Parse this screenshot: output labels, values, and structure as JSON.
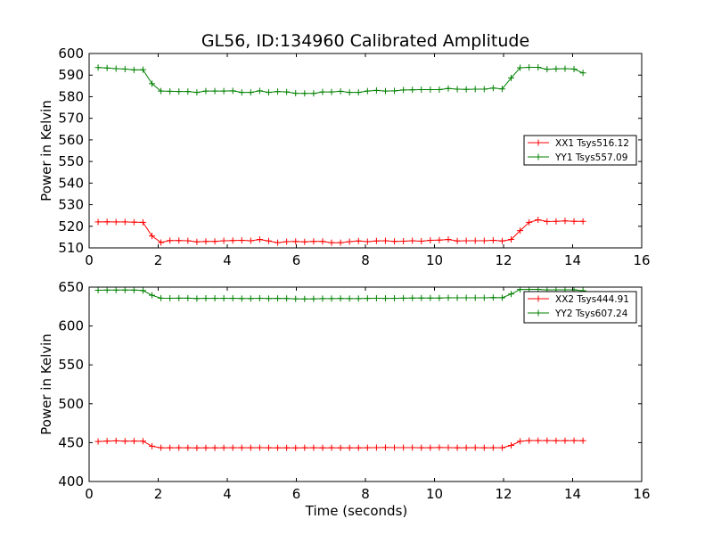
{
  "figure": {
    "title": "GL56, ID:134960 Calibrated Amplitude"
  },
  "chart_data": [
    {
      "type": "line",
      "title": "GL56, ID:134960 Calibrated Amplitude",
      "xlabel": "",
      "ylabel": "Power in Kelvin",
      "xlim": [
        0,
        16
      ],
      "ylim": [
        510,
        600
      ],
      "xticks": [
        0,
        2,
        4,
        6,
        8,
        10,
        12,
        14,
        16
      ],
      "yticks": [
        510,
        520,
        530,
        540,
        550,
        560,
        570,
        580,
        590,
        600
      ],
      "grid": false,
      "legend_position": "center-right",
      "x": [
        0.26,
        0.52,
        0.78,
        1.04,
        1.3,
        1.56,
        1.82,
        2.08,
        2.34,
        2.6,
        2.86,
        3.12,
        3.38,
        3.64,
        3.9,
        4.16,
        4.42,
        4.68,
        4.94,
        5.2,
        5.46,
        5.72,
        5.98,
        6.24,
        6.5,
        6.76,
        7.02,
        7.28,
        7.54,
        7.8,
        8.06,
        8.32,
        8.58,
        8.84,
        9.1,
        9.36,
        9.62,
        9.88,
        10.14,
        10.4,
        10.66,
        10.92,
        11.18,
        11.44,
        11.7,
        11.96,
        12.22,
        12.48,
        12.74,
        13.0,
        13.26,
        13.52,
        13.78,
        14.04,
        14.3
      ],
      "series": [
        {
          "name": "XX1 Tsys516.12",
          "color": "#ff0000",
          "values": [
            522.0,
            522.1,
            522.0,
            522.0,
            521.9,
            521.8,
            515.5,
            512.5,
            513.4,
            513.4,
            513.3,
            512.8,
            513.0,
            513.0,
            513.3,
            513.4,
            513.5,
            513.3,
            513.9,
            513.2,
            512.4,
            512.9,
            513.0,
            512.8,
            513.0,
            513.0,
            512.4,
            512.4,
            512.9,
            513.2,
            512.9,
            513.2,
            513.3,
            513.0,
            513.1,
            513.3,
            513.1,
            513.5,
            513.6,
            513.9,
            513.2,
            513.3,
            513.3,
            513.3,
            513.5,
            513.2,
            513.9,
            518.0,
            521.8,
            523.0,
            522.2,
            522.3,
            522.5,
            522.3,
            522.3
          ]
        },
        {
          "name": "YY1 Tsys557.09",
          "color": "#008000",
          "values": [
            593.5,
            593.3,
            593.0,
            592.8,
            592.4,
            592.5,
            586.0,
            582.6,
            582.5,
            582.4,
            582.4,
            582.0,
            582.6,
            582.6,
            582.6,
            582.7,
            582.0,
            582.0,
            582.7,
            582.0,
            582.4,
            582.2,
            581.6,
            581.5,
            581.5,
            582.2,
            582.2,
            582.5,
            582.0,
            582.0,
            582.6,
            582.9,
            582.6,
            582.7,
            583.1,
            583.2,
            583.3,
            583.3,
            583.3,
            583.8,
            583.5,
            583.4,
            583.5,
            583.5,
            584.0,
            583.6,
            588.7,
            593.4,
            593.6,
            593.6,
            592.7,
            592.9,
            593.0,
            592.8,
            591.0
          ]
        }
      ]
    },
    {
      "type": "line",
      "title": "",
      "xlabel": "Time (seconds)",
      "ylabel": "Power in Kelvin",
      "xlim": [
        0,
        16
      ],
      "ylim": [
        400,
        650
      ],
      "xticks": [
        0,
        2,
        4,
        6,
        8,
        10,
        12,
        14,
        16
      ],
      "yticks": [
        400,
        450,
        500,
        550,
        600,
        650
      ],
      "grid": false,
      "legend_position": "top-right",
      "x": [
        0.26,
        0.52,
        0.78,
        1.04,
        1.3,
        1.56,
        1.82,
        2.08,
        2.34,
        2.6,
        2.86,
        3.12,
        3.38,
        3.64,
        3.9,
        4.16,
        4.42,
        4.68,
        4.94,
        5.2,
        5.46,
        5.72,
        5.98,
        6.24,
        6.5,
        6.76,
        7.02,
        7.28,
        7.54,
        7.8,
        8.06,
        8.32,
        8.58,
        8.84,
        9.1,
        9.36,
        9.62,
        9.88,
        10.14,
        10.4,
        10.66,
        10.92,
        11.18,
        11.44,
        11.7,
        11.96,
        12.22,
        12.48,
        12.74,
        13.0,
        13.26,
        13.52,
        13.78,
        14.04,
        14.3
      ],
      "series": [
        {
          "name": "XX2 Tsys444.91",
          "color": "#ff0000",
          "values": [
            451.5,
            452.0,
            452.3,
            451.9,
            452.0,
            451.9,
            445.4,
            443.4,
            443.4,
            443.5,
            443.4,
            443.2,
            443.3,
            443.3,
            443.4,
            443.5,
            443.5,
            443.5,
            443.6,
            443.4,
            443.3,
            443.3,
            443.2,
            443.4,
            443.5,
            443.3,
            443.4,
            443.3,
            443.3,
            443.3,
            443.5,
            443.6,
            443.7,
            443.6,
            443.6,
            443.6,
            443.5,
            443.5,
            443.7,
            443.6,
            443.4,
            443.5,
            443.6,
            443.4,
            443.5,
            443.5,
            446.4,
            451.7,
            452.6,
            452.6,
            452.6,
            452.5,
            452.5,
            452.6,
            452.5
          ]
        },
        {
          "name": "YY2 Tsys607.24",
          "color": "#008000",
          "values": [
            646.0,
            646.2,
            646.2,
            646.3,
            646.2,
            645.6,
            639.5,
            635.8,
            635.7,
            635.8,
            635.8,
            635.3,
            635.6,
            635.6,
            635.6,
            635.7,
            635.3,
            635.3,
            635.7,
            635.3,
            635.5,
            635.4,
            634.9,
            634.8,
            634.9,
            635.2,
            635.2,
            635.4,
            635.2,
            635.2,
            635.5,
            635.7,
            635.5,
            635.6,
            635.8,
            635.9,
            636.0,
            636.0,
            636.0,
            636.3,
            636.2,
            636.2,
            636.2,
            636.2,
            636.5,
            636.3,
            641.1,
            647.0,
            647.1,
            647.1,
            646.5,
            646.6,
            646.6,
            646.5,
            645.4
          ]
        }
      ]
    }
  ]
}
